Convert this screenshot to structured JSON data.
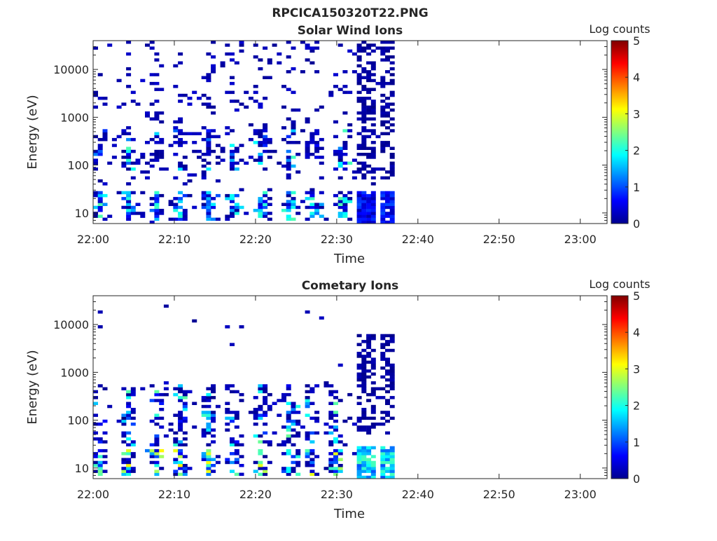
{
  "figure_title": "RPCICA150320T22.PNG",
  "chart_data": [
    {
      "type": "heatmap",
      "title": "Solar Wind Ions",
      "xlabel": "Time",
      "ylabel": "Energy (eV)",
      "x_ticks": [
        "22:00",
        "22:10",
        "22:20",
        "22:30",
        "22:40",
        "22:50",
        "23:00"
      ],
      "x_tick_minutes": [
        0,
        10,
        20,
        30,
        40,
        50,
        60
      ],
      "xlim_minutes": [
        0,
        63.3
      ],
      "y_scale": "log",
      "y_ticks": [
        "10",
        "100",
        "1000",
        "10000"
      ],
      "y_tick_values": [
        10,
        100,
        1000,
        10000
      ],
      "ylim": [
        6,
        40000
      ],
      "colorbar": {
        "label": "Log counts",
        "ticks": [
          "0",
          "1",
          "2",
          "3",
          "4",
          "5"
        ],
        "range": [
          0,
          5
        ],
        "colormap": "jet"
      },
      "data_end_minute": 37.2,
      "burst_minutes": [
        0.5,
        4,
        7.5,
        10.5,
        14,
        17,
        20.5,
        24,
        27,
        30.5
      ],
      "dense_minutes": [
        [
          32,
          34.5
        ],
        [
          35.3,
          37.2
        ]
      ],
      "mid_band_eV": [
        80,
        600
      ],
      "mid_band_peak_log_counts": 2.3,
      "low_band_eV": [
        7,
        28
      ],
      "low_band_peak_log_counts": 2.0,
      "background_fill_prob": 0.05,
      "seed": 11
    },
    {
      "type": "heatmap",
      "title": "Cometary Ions",
      "xlabel": "Time",
      "ylabel": "Energy (eV)",
      "x_ticks": [
        "22:00",
        "22:10",
        "22:20",
        "22:30",
        "22:40",
        "22:50",
        "23:00"
      ],
      "x_tick_minutes": [
        0,
        10,
        20,
        30,
        40,
        50,
        60
      ],
      "xlim_minutes": [
        0,
        63.3
      ],
      "y_scale": "log",
      "y_ticks": [
        "10",
        "100",
        "1000",
        "10000"
      ],
      "y_tick_values": [
        10,
        100,
        1000,
        10000
      ],
      "ylim": [
        6,
        40000
      ],
      "colorbar": {
        "label": "Log counts",
        "ticks": [
          "0",
          "1",
          "2",
          "3",
          "4",
          "5"
        ],
        "range": [
          0,
          5
        ],
        "colormap": "jet"
      },
      "data_end_minute": 37.2,
      "burst_minutes": [
        0.5,
        4,
        7.5,
        10.5,
        14,
        17,
        20.5,
        24,
        26.5,
        29.5
      ],
      "dense_minutes": [
        [
          32,
          34.5
        ],
        [
          35.3,
          37.2
        ]
      ],
      "mid_band_eV": [
        30,
        600
      ],
      "mid_band_peak_log_counts": 2.4,
      "low_band_eV": [
        7,
        26
      ],
      "low_band_peak_log_counts": 3.0,
      "background_fill_prob": 0.004,
      "seed": 29
    }
  ]
}
